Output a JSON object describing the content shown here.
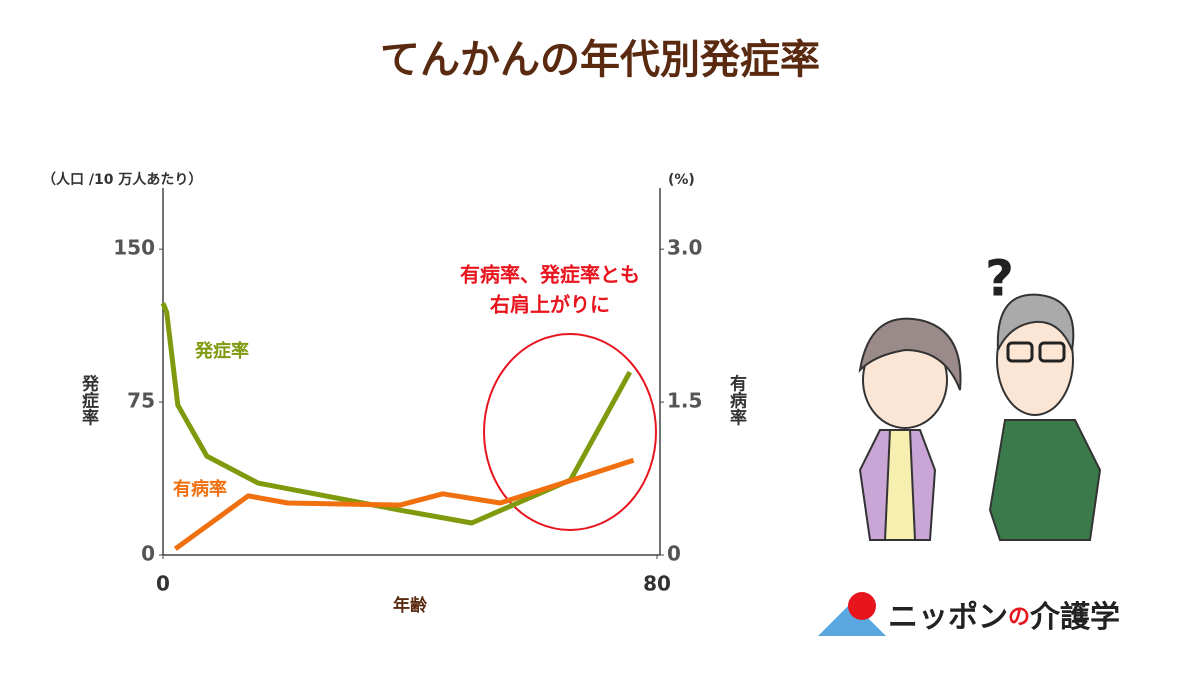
{
  "chart_data": {
    "type": "line",
    "title": "てんかんの年代別発症率",
    "ylabel": "発症率",
    "y2label": "有病率",
    "yunit": "（人口 /10 万人あたり）",
    "y2unit": "(%)",
    "xlabel": "年齢",
    "xlim": [
      0,
      80
    ],
    "xticks": [
      0,
      80
    ],
    "ylim": [
      0,
      180
    ],
    "yticks": [
      0,
      75,
      150
    ],
    "y2lim": [
      0,
      3.6
    ],
    "y2ticks": [
      0,
      1.5,
      {
        "value": 3,
        "label": "3.0"
      }
    ],
    "series": [
      {
        "name": "発症率",
        "color": "#7f9a0c",
        "axis": "y",
        "x": [
          0,
          0.6,
          2.4,
          7.1,
          15.4,
          38.4,
          50,
          66,
          75.6
        ],
        "values": [
          123.5,
          119,
          73.5,
          48.5,
          35.3,
          22,
          15.7,
          36.8,
          89.7
        ]
      },
      {
        "name": "有病率",
        "color": "#f07010",
        "axis": "y2",
        "x": [
          2,
          13.8,
          20.2,
          38.4,
          45.3,
          54.6,
          66,
          76.2
        ],
        "values": [
          0.06,
          0.58,
          0.51,
          0.49,
          0.6,
          0.51,
          0.73,
          0.93
        ]
      }
    ],
    "annotation": [
      "有病率、発症率とも",
      "右肩上がりに"
    ],
    "logo": [
      "ニッポン",
      "の",
      "介護学"
    ]
  }
}
